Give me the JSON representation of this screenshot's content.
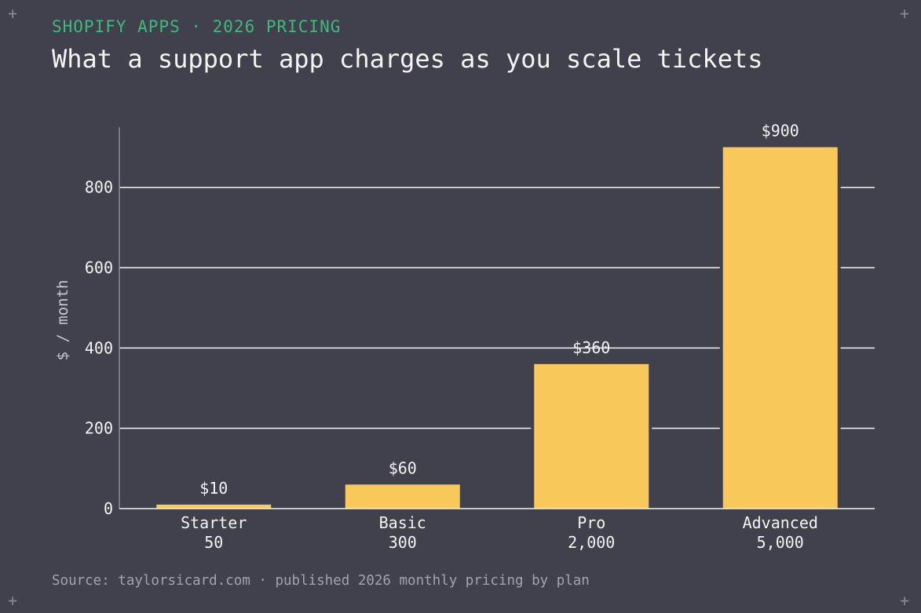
{
  "header": {
    "kicker": "SHOPIFY APPS · 2026 PRICING",
    "title": "What a support app charges as you scale tickets"
  },
  "footer": {
    "source": "Source: taylorsicard.com · published 2026 monthly pricing by plan"
  },
  "decor": {
    "corner_glyph": "+"
  },
  "colors": {
    "background": "#41404d",
    "bar": "#f9c85a",
    "grid": "#f4f3f1",
    "accent": "#3dba7e"
  },
  "chart_data": {
    "type": "bar",
    "categories": [
      "Starter",
      "Basic",
      "Pro",
      "Advanced"
    ],
    "subcategories": [
      "50",
      "300",
      "2,000",
      "5,000"
    ],
    "values": [
      10,
      60,
      360,
      900
    ],
    "data_labels": [
      "$10",
      "$60",
      "$360",
      "$900"
    ],
    "ylabel": "$ / month",
    "ylim": [
      0,
      950
    ],
    "yticks": [
      0,
      200,
      400,
      600,
      800
    ],
    "grid": true
  }
}
